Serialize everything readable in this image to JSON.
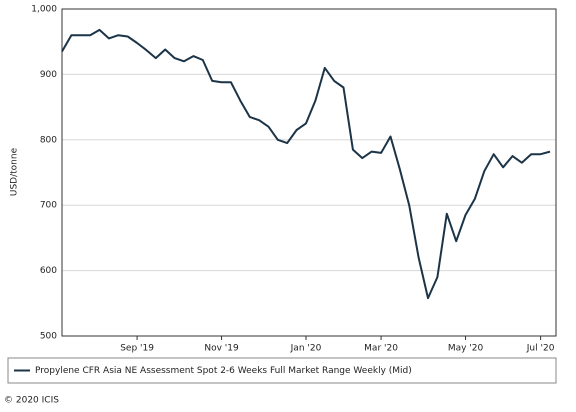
{
  "chart_data": {
    "type": "line",
    "y_label": "USD/tonne",
    "categories": [
      null,
      null,
      null,
      null,
      null,
      null,
      null,
      null,
      "Sep '19",
      null,
      null,
      null,
      null,
      null,
      null,
      null,
      null,
      "Nov '19",
      null,
      null,
      null,
      null,
      null,
      null,
      null,
      null,
      "Jan '20",
      null,
      null,
      null,
      null,
      null,
      null,
      null,
      "Mar '20",
      null,
      null,
      null,
      null,
      null,
      null,
      null,
      null,
      "May '20",
      null,
      null,
      null,
      null,
      null,
      null,
      null,
      "Jul '20",
      null
    ],
    "series": [
      {
        "name": "Propylene CFR Asia NE Assessment Spot 2-6 Weeks Full Market Range Weekly (Mid)",
        "color": "#1c3447",
        "values": [
          935,
          960,
          960,
          960,
          968,
          955,
          960,
          958,
          948,
          937,
          925,
          938,
          925,
          920,
          928,
          922,
          890,
          888,
          888,
          860,
          835,
          830,
          820,
          800,
          795,
          815,
          825,
          860,
          910,
          890,
          880,
          785,
          772,
          782,
          780,
          805,
          755,
          700,
          620,
          558,
          590,
          687,
          645,
          685,
          710,
          752,
          778,
          758,
          775,
          765,
          778,
          778,
          782
        ]
      }
    ],
    "ylim": [
      500,
      1000
    ],
    "yticks": [
      500,
      600,
      700,
      800,
      900,
      {
        "value": 1000,
        "label": "1,000"
      }
    ],
    "grid": true,
    "footer": "© 2020 ICIS"
  }
}
